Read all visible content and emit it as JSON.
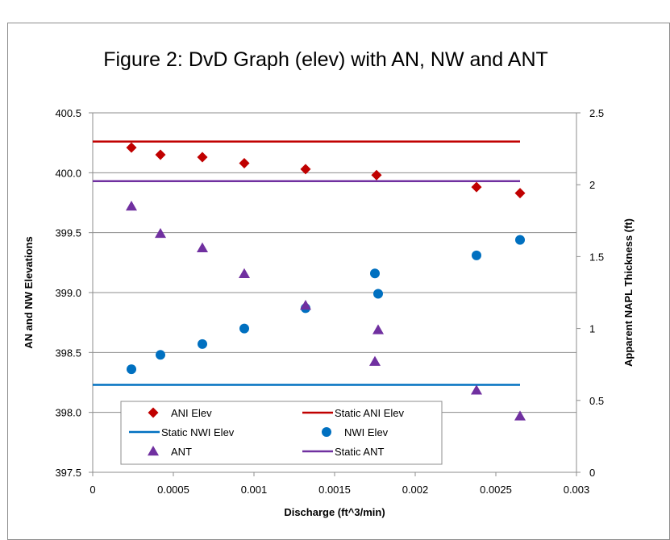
{
  "chart_data": {
    "type": "scatter",
    "title": "Figure 2:  DvD Graph (elev) with AN, NW and ANT",
    "xlabel": "Discharge (ft^3/min)",
    "ylabel": "AN and NW Elevations",
    "y2label": "Apparent NAPL Thickness (ft)",
    "xlim": [
      0,
      0.003
    ],
    "ylim": [
      397.5,
      400.5
    ],
    "y2lim": [
      0,
      2.5
    ],
    "x_ticks": [
      "0",
      "0.0005",
      "0.001",
      "0.0015",
      "0.002",
      "0.0025",
      "0.003"
    ],
    "y_ticks": [
      "397.5",
      "398.0",
      "398.5",
      "399.0",
      "399.5",
      "400.0",
      "400.5"
    ],
    "y2_ticks": [
      "0",
      "0.5",
      "1",
      "1.5",
      "2",
      "2.5"
    ],
    "grid": "horizontal",
    "legend_placement": "bottom-left",
    "series": [
      {
        "name": "ANI Elev",
        "axis": "left",
        "marker": "diamond",
        "color": "#c00000",
        "x": [
          0.00024,
          0.00042,
          0.00068,
          0.00094,
          0.00132,
          0.00176,
          0.00238,
          0.00265
        ],
        "y": [
          400.21,
          400.15,
          400.13,
          400.08,
          400.03,
          399.98,
          399.88,
          399.83
        ]
      },
      {
        "name": "Static ANI Elev",
        "axis": "left",
        "line": true,
        "color": "#c00000",
        "x": [
          0.0,
          0.00265
        ],
        "y": [
          400.26,
          400.26
        ]
      },
      {
        "name": "Static NWI Elev",
        "axis": "left",
        "line": true,
        "color": "#0070c0",
        "x": [
          0.0,
          0.00265
        ],
        "y": [
          398.23,
          398.23
        ]
      },
      {
        "name": "NWI Elev",
        "axis": "left",
        "marker": "circle",
        "color": "#0070c0",
        "x": [
          0.00024,
          0.00042,
          0.00068,
          0.00094,
          0.00132,
          0.00175,
          0.00177,
          0.00238,
          0.00265
        ],
        "y": [
          398.36,
          398.48,
          398.57,
          398.7,
          398.87,
          399.16,
          398.99,
          399.31,
          399.44
        ]
      },
      {
        "name": "ANT",
        "axis": "right",
        "marker": "triangle",
        "color": "#7030a0",
        "x": [
          0.00024,
          0.00042,
          0.00068,
          0.00094,
          0.00132,
          0.00175,
          0.00177,
          0.00238,
          0.00265
        ],
        "y": [
          1.85,
          1.66,
          1.56,
          1.38,
          1.16,
          0.77,
          0.99,
          0.57,
          0.39
        ]
      },
      {
        "name": "Static ANT",
        "axis": "left",
        "line": true,
        "color": "#7030a0",
        "x": [
          0.0,
          0.00265
        ],
        "y": [
          399.93,
          399.93
        ]
      }
    ]
  }
}
